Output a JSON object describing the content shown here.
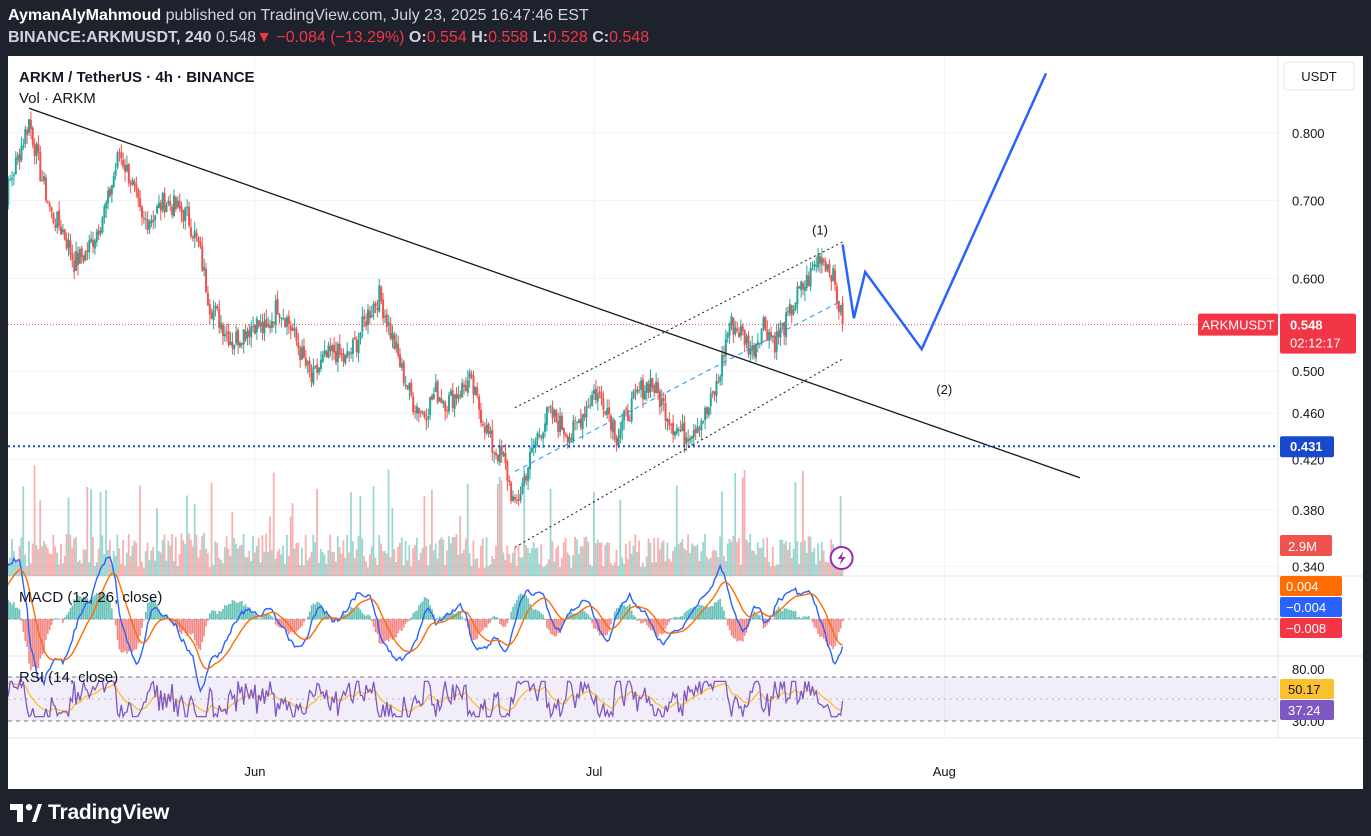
{
  "header": {
    "author": "AymanAlyMahmoud",
    "published_text": "published on TradingView.com, July 23, 2025 16:47:46 EST",
    "symbol": "BINANCE:ARKMUSDT, 240",
    "last": "0.548",
    "change": "▼ −0.084 (−13.29%)",
    "o_label": "O:",
    "o_value": "0.554",
    "h_label": "H:",
    "h_value": "0.558",
    "l_label": "L:",
    "l_value": "0.528",
    "c_label": "C:",
    "c_value": "0.548"
  },
  "legend": {
    "title": "ARKM / TetherUS · 4h · BINANCE",
    "volume": "Vol · ARKM",
    "macd": "MACD (12, 26, close)",
    "rsi": "RSI (14, close)"
  },
  "scale": {
    "currency": "USDT"
  },
  "footer": {
    "brand": "TradingView"
  },
  "colors": {
    "up": "#26a69a",
    "down": "#ef5350",
    "projection": "#2962ff",
    "accent_red": "#f23645",
    "line_blue": "#1848cc",
    "macd_signal": "#ff6d00",
    "rsi": "#7e57c2",
    "rsi_ma": "#fbc02d"
  },
  "chart_data": {
    "type": "candlestick",
    "symbol": "ARKM / TetherUS",
    "interval": "4h",
    "exchange": "BINANCE",
    "y_axis": {
      "scale": "log",
      "range": [
        0.336,
        0.9
      ],
      "ticks": [
        "0.800",
        "0.700",
        "0.600",
        "0.500",
        "0.460",
        "0.420",
        "0.380",
        "0.340"
      ]
    },
    "x_axis": {
      "ticks": [
        "Jun",
        "Jul",
        "Aug"
      ]
    },
    "last_price": {
      "label": "ARKMUSDT",
      "value": 0.548,
      "countdown": "02:12:17"
    },
    "support_level": {
      "value": 0.431,
      "label": "0.431",
      "style": "dotted"
    },
    "price_path": [
      [
        "May 9",
        0.64
      ],
      [
        "May 10",
        0.71
      ],
      [
        "May 11",
        0.76
      ],
      [
        "May 12",
        0.82
      ],
      [
        "May 13",
        0.74
      ],
      [
        "May 14",
        0.68
      ],
      [
        "May 15",
        0.66
      ],
      [
        "May 16",
        0.62
      ],
      [
        "May 17",
        0.63
      ],
      [
        "May 18",
        0.66
      ],
      [
        "May 19",
        0.7
      ],
      [
        "May 20",
        0.77
      ],
      [
        "May 21",
        0.73
      ],
      [
        "May 22",
        0.67
      ],
      [
        "May 23",
        0.68
      ],
      [
        "May 24",
        0.7
      ],
      [
        "May 25",
        0.69
      ],
      [
        "May 26",
        0.68
      ],
      [
        "May 27",
        0.64
      ],
      [
        "May 28",
        0.57
      ],
      [
        "May 29",
        0.55
      ],
      [
        "May 30",
        0.53
      ],
      [
        "May 31",
        0.54
      ],
      [
        "Jun 1",
        0.55
      ],
      [
        "Jun 2",
        0.54
      ],
      [
        "Jun 3",
        0.57
      ],
      [
        "Jun 4",
        0.55
      ],
      [
        "Jun 5",
        0.52
      ],
      [
        "Jun 6",
        0.49
      ],
      [
        "Jun 7",
        0.51
      ],
      [
        "Jun 8",
        0.52
      ],
      [
        "Jun 9",
        0.51
      ],
      [
        "Jun 10",
        0.53
      ],
      [
        "Jun 11",
        0.56
      ],
      [
        "Jun 12",
        0.58
      ],
      [
        "Jun 13",
        0.54
      ],
      [
        "Jun 14",
        0.5
      ],
      [
        "Jun 15",
        0.47
      ],
      [
        "Jun 16",
        0.46
      ],
      [
        "Jun 17",
        0.48
      ],
      [
        "Jun 18",
        0.47
      ],
      [
        "Jun 19",
        0.48
      ],
      [
        "Jun 20",
        0.49
      ],
      [
        "Jun 21",
        0.46
      ],
      [
        "Jun 22",
        0.43
      ],
      [
        "Jun 23",
        0.42
      ],
      [
        "Jun 24",
        0.38
      ],
      [
        "Jun 25",
        0.41
      ],
      [
        "Jun 26",
        0.44
      ],
      [
        "Jun 27",
        0.46
      ],
      [
        "Jun 28",
        0.45
      ],
      [
        "Jun 29",
        0.44
      ],
      [
        "Jun 30",
        0.46
      ],
      [
        "Jul 1",
        0.48
      ],
      [
        "Jul 2",
        0.47
      ],
      [
        "Jul 3",
        0.44
      ],
      [
        "Jul 4",
        0.46
      ],
      [
        "Jul 5",
        0.48
      ],
      [
        "Jul 6",
        0.49
      ],
      [
        "Jul 7",
        0.47
      ],
      [
        "Jul 8",
        0.45
      ],
      [
        "Jul 9",
        0.44
      ],
      [
        "Jul 10",
        0.45
      ],
      [
        "Jul 11",
        0.46
      ],
      [
        "Jul 12",
        0.49
      ],
      [
        "Jul 13",
        0.55
      ],
      [
        "Jul 14",
        0.54
      ],
      [
        "Jul 15",
        0.52
      ],
      [
        "Jul 16",
        0.55
      ],
      [
        "Jul 17",
        0.53
      ],
      [
        "Jul 18",
        0.55
      ],
      [
        "Jul 19",
        0.58
      ],
      [
        "Jul 20",
        0.6
      ],
      [
        "Jul 21",
        0.63
      ],
      [
        "Jul 22",
        0.61
      ],
      [
        "Jul 23",
        0.548
      ]
    ],
    "projection": {
      "points": [
        [
          "Jul 23",
          0.642
        ],
        [
          "Jul 24",
          0.555
        ],
        [
          "Jul 25",
          0.608
        ],
        [
          "Jul 30",
          0.522
        ],
        [
          "Aug 10",
          0.9
        ]
      ],
      "labels": [
        {
          "text": "(1)",
          "at": [
            "Jul 21",
            0.655
          ]
        },
        {
          "text": "(2)",
          "at": [
            "Aug 1",
            0.478
          ]
        }
      ]
    },
    "trendline": {
      "from": [
        "May 12",
        0.84
      ],
      "to": [
        "Aug 13",
        0.405
      ]
    },
    "channel": {
      "upper": {
        "from": [
          "Jun 24",
          0.465
        ],
        "to": [
          "Jul 23",
          0.645
        ]
      },
      "middle": {
        "from": [
          "Jun 24",
          0.41
        ],
        "to": [
          "Jul 23",
          0.575
        ]
      },
      "lower": {
        "from": [
          "Jun 24",
          0.353
        ],
        "to": [
          "Jul 23",
          0.512
        ]
      }
    },
    "volume": {
      "last_label": "2.9M"
    },
    "macd": {
      "fast": 12,
      "slow": 26,
      "source": "close",
      "last_values": {
        "histogram": "0.004",
        "macd": "−0.004",
        "signal": "−0.008"
      }
    },
    "rsi": {
      "length": 14,
      "source": "close",
      "levels": [
        70,
        50,
        30
      ],
      "axis_ticks": [
        "80.00",
        "30.00"
      ],
      "last_values": {
        "rsi_ma": "50.17",
        "rsi": "37.24"
      }
    }
  }
}
